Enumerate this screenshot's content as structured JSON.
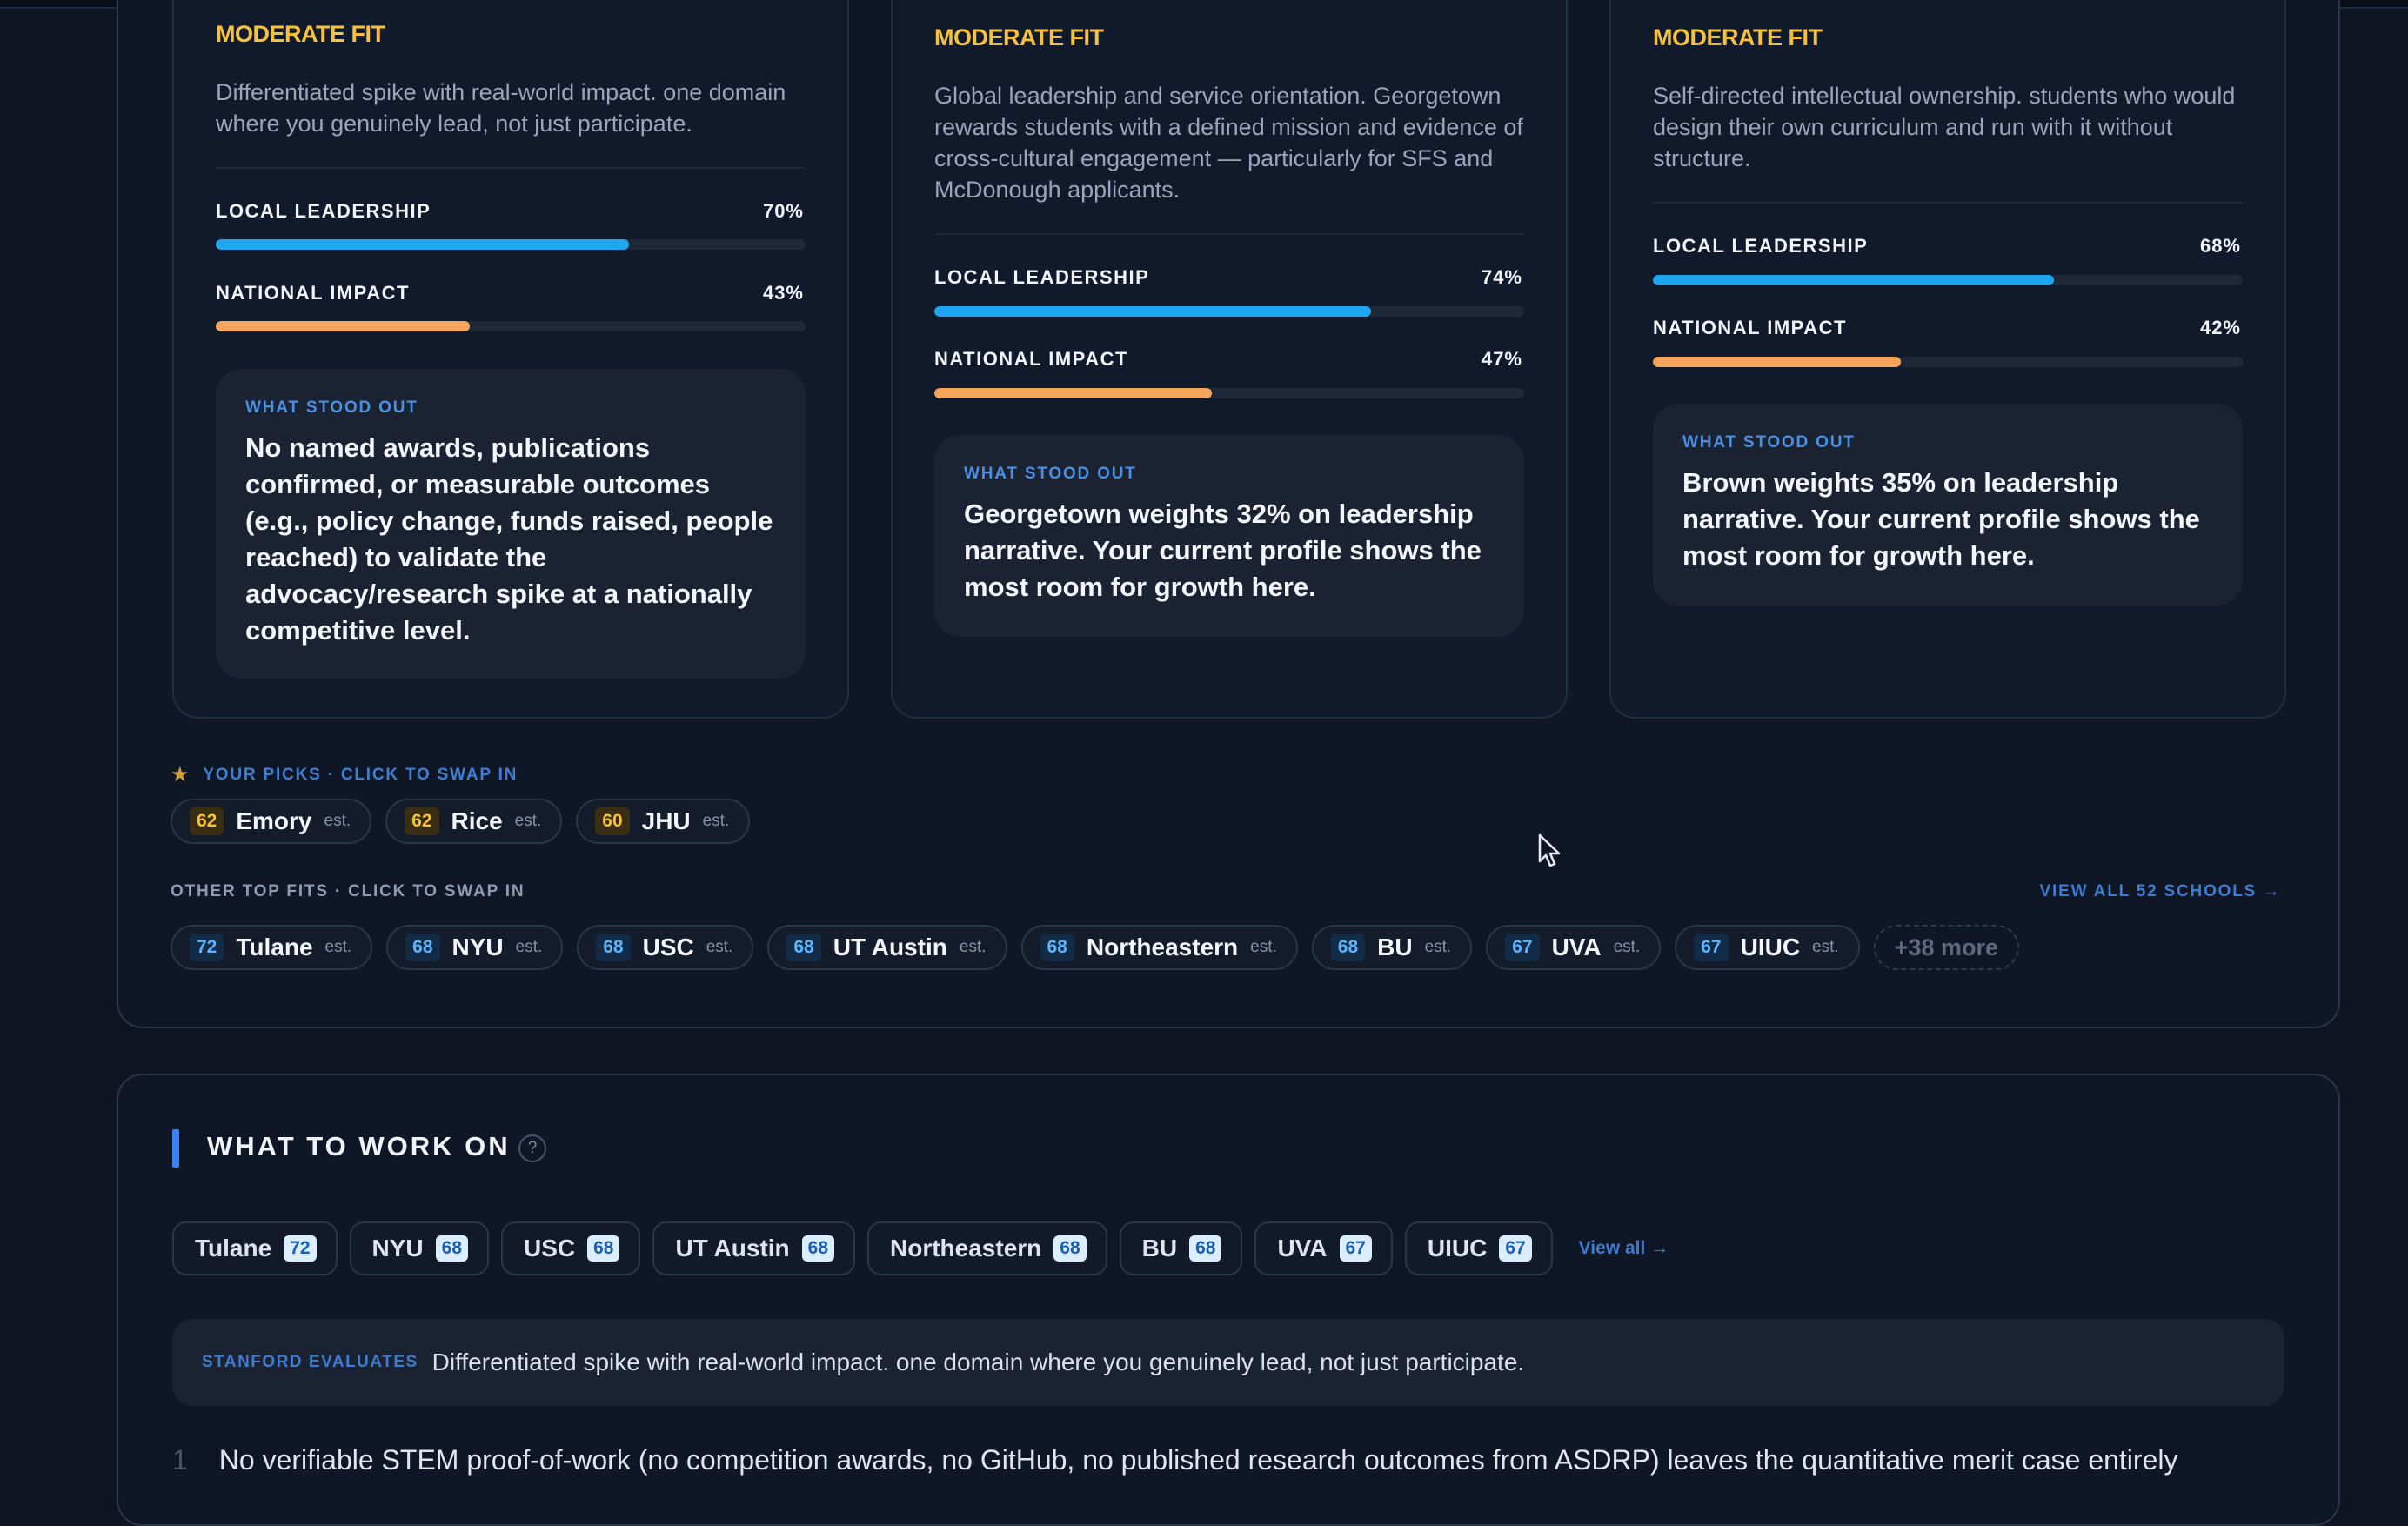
{
  "cards": [
    {
      "fit": "MODERATE FIT",
      "description": "Differentiated spike with real-world impact. one domain where you genuinely lead, not just participate.",
      "metrics": [
        {
          "label": "LOCAL LEADERSHIP",
          "value_text": "70%",
          "value": 0.7,
          "color": "blue"
        },
        {
          "label": "NATIONAL IMPACT",
          "value_text": "43%",
          "value": 0.43,
          "color": "orange"
        }
      ],
      "standout_label": "WHAT STOOD OUT",
      "standout_text": "No named awards, publications confirmed, or measurable outcomes (e.g., policy change, funds raised, people reached) to validate the advocacy/research spike at a nationally competitive level."
    },
    {
      "fit": "MODERATE FIT",
      "description": "Global leadership and service orientation. Georgetown rewards students with a defined mission and evidence of cross-cultural engagement — particularly for SFS and McDonough applicants.",
      "metrics": [
        {
          "label": "LOCAL LEADERSHIP",
          "value_text": "74%",
          "value": 0.74,
          "color": "blue"
        },
        {
          "label": "NATIONAL IMPACT",
          "value_text": "47%",
          "value": 0.47,
          "color": "orange"
        }
      ],
      "standout_label": "WHAT STOOD OUT",
      "standout_text": "Georgetown weights 32% on leadership narrative. Your current profile shows the most room for growth here."
    },
    {
      "fit": "MODERATE FIT",
      "description": "Self-directed intellectual ownership. students who would design their own curriculum and run with it without structure.",
      "metrics": [
        {
          "label": "LOCAL LEADERSHIP",
          "value_text": "68%",
          "value": 0.68,
          "color": "blue"
        },
        {
          "label": "NATIONAL IMPACT",
          "value_text": "42%",
          "value": 0.42,
          "color": "orange"
        }
      ],
      "standout_label": "WHAT STOOD OUT",
      "standout_text": "Brown weights 35% on leadership narrative. Your current profile shows the most room for growth here."
    }
  ],
  "picks": {
    "heading": "YOUR PICKS · CLICK TO SWAP IN",
    "items": [
      {
        "score": "62",
        "name": "Emory",
        "est": "est."
      },
      {
        "score": "62",
        "name": "Rice",
        "est": "est."
      },
      {
        "score": "60",
        "name": "JHU",
        "est": "est."
      }
    ]
  },
  "others": {
    "heading": "OTHER TOP FITS · CLICK TO SWAP IN",
    "view_all": "VIEW ALL 52 SCHOOLS →",
    "items": [
      {
        "score": "72",
        "name": "Tulane",
        "est": "est."
      },
      {
        "score": "68",
        "name": "NYU",
        "est": "est."
      },
      {
        "score": "68",
        "name": "USC",
        "est": "est."
      },
      {
        "score": "68",
        "name": "UT Austin",
        "est": "est."
      },
      {
        "score": "68",
        "name": "Northeastern",
        "est": "est."
      },
      {
        "score": "68",
        "name": "BU",
        "est": "est."
      },
      {
        "score": "67",
        "name": "UVA",
        "est": "est."
      },
      {
        "score": "67",
        "name": "UIUC",
        "est": "est."
      }
    ],
    "more": "+38 more"
  },
  "work_on": {
    "title": "WHAT TO WORK ON",
    "help": "?",
    "tabs": [
      {
        "name": "Tulane",
        "score": "72"
      },
      {
        "name": "NYU",
        "score": "68"
      },
      {
        "name": "USC",
        "score": "68"
      },
      {
        "name": "UT Austin",
        "score": "68"
      },
      {
        "name": "Northeastern",
        "score": "68"
      },
      {
        "name": "BU",
        "score": "68"
      },
      {
        "name": "UVA",
        "score": "67"
      },
      {
        "name": "UIUC",
        "score": "67"
      }
    ],
    "view_all": "View all →",
    "evaluates_label": "STANFORD EVALUATES",
    "evaluates_text": "Differentiated spike with real-world impact. one domain where you genuinely lead, not just participate.",
    "item_number": "1",
    "item_text": "No verifiable STEM proof-of-work (no competition awards, no GitHub, no published research outcomes from ASDRP) leaves the quantitative merit case entirely"
  },
  "colors": {
    "accent": "#3b82f6",
    "fit": "#f6c23e",
    "bar_blue": "#1ea7f0",
    "bar_orange": "#f5a55a"
  }
}
